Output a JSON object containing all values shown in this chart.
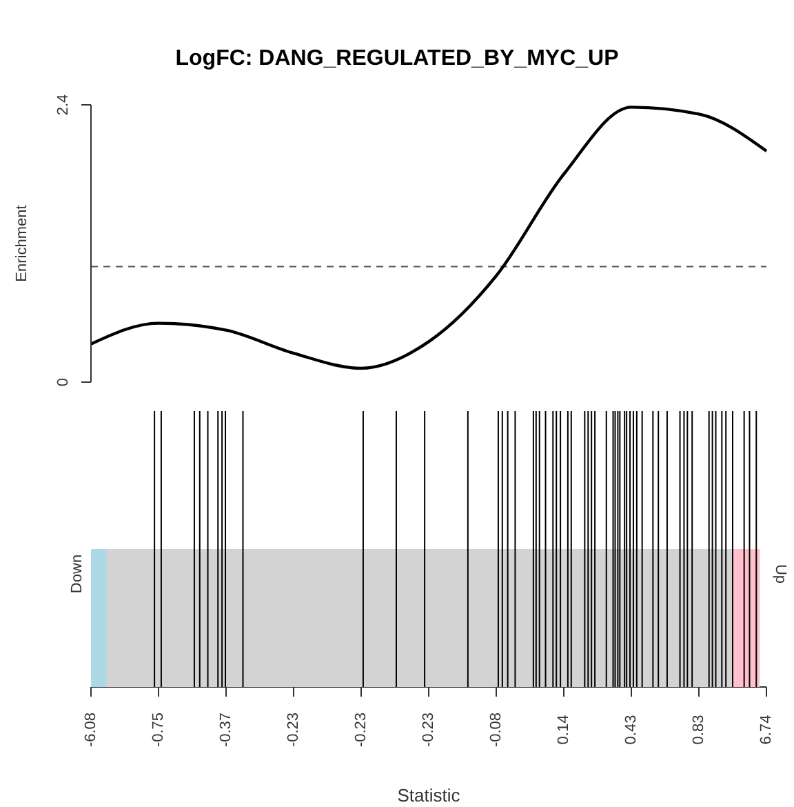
{
  "chart_data": [
    {
      "type": "line",
      "title": "LogFC: DANG_REGULATED_BY_MYC_UP",
      "ylabel": "Enrichment",
      "categories": [
        null,
        null,
        null,
        null,
        null,
        null,
        null,
        null,
        null,
        null,
        null
      ],
      "ylim": [
        0,
        2.4
      ],
      "yticks": [
        0,
        2.4
      ],
      "tick_labels": "y",
      "marker": "none",
      "line_style": "solid",
      "ref_lines": [
        {
          "axis": "y",
          "value": 1,
          "color": "#555555",
          "line_style": "dashed"
        }
      ],
      "series": [
        {
          "color": "#000000",
          "values": [
            0.33,
            0.51,
            0.45,
            0.25,
            0.12,
            0.35,
            0.92,
            1.8,
            2.38,
            2.32,
            2.0
          ]
        }
      ]
    },
    {
      "type": "other",
      "xlabel": "Statistic",
      "categories": [
        "-6.08",
        "-0.75",
        "-0.37",
        "-0.23",
        "-0.23",
        "-0.23",
        "-0.08",
        "0.14",
        "0.43",
        "0.83",
        "6.74"
      ],
      "annotations": [
        "Down",
        "Up"
      ]
    }
  ]
}
